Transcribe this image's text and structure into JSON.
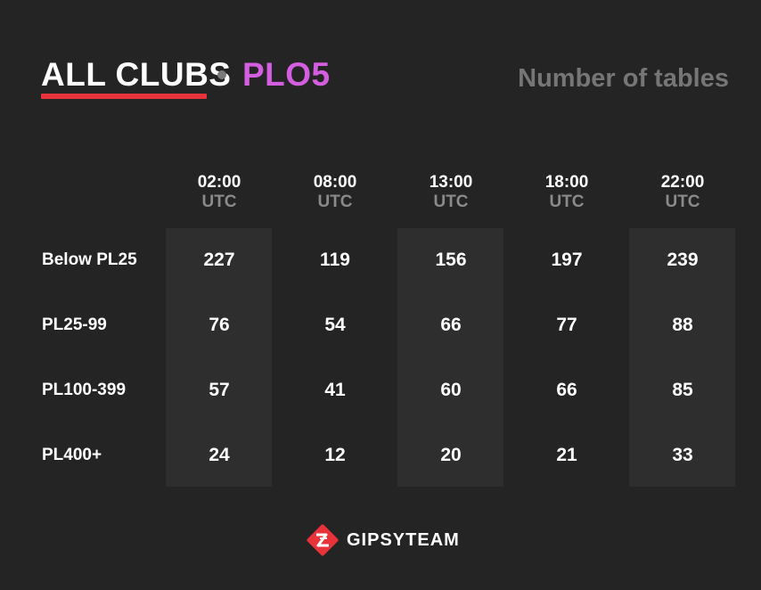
{
  "header": {
    "title": "ALL CLUBS",
    "game": "PLO5",
    "metric": "Number of tables"
  },
  "chart_data": {
    "type": "table",
    "columns": [
      {
        "time": "02:00",
        "tz": "UTC"
      },
      {
        "time": "08:00",
        "tz": "UTC"
      },
      {
        "time": "13:00",
        "tz": "UTC"
      },
      {
        "time": "18:00",
        "tz": "UTC"
      },
      {
        "time": "22:00",
        "tz": "UTC"
      }
    ],
    "rows": [
      {
        "label": "Below PL25",
        "values": [
          227,
          119,
          156,
          197,
          239
        ]
      },
      {
        "label": "PL25-99",
        "values": [
          76,
          54,
          66,
          77,
          88
        ]
      },
      {
        "label": "PL100-399",
        "values": [
          57,
          41,
          60,
          66,
          85
        ]
      },
      {
        "label": "PL400+",
        "values": [
          24,
          12,
          20,
          21,
          33
        ]
      }
    ]
  },
  "colors": {
    "background": "#242424",
    "column_highlight": "#2e2e2e",
    "accent_red": "#e8333a",
    "game_pink": "#d45ee0",
    "muted_gray": "#767676"
  },
  "footer": {
    "brand": "GIPSYTEAM",
    "logo_icon": "gipsyteam-logo-icon"
  }
}
